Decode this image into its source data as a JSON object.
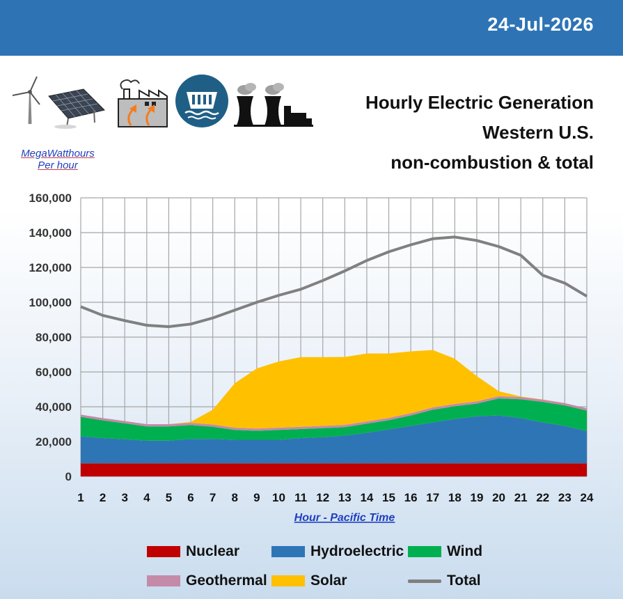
{
  "header": {
    "date": "24-Jul-2026"
  },
  "icons": [
    "wind-turbine-icon",
    "solar-panel-icon",
    "geothermal-plant-icon",
    "hydro-dam-icon",
    "nuclear-plant-icon"
  ],
  "units": {
    "line1": "MegaWatthours",
    "line2": "Per hour"
  },
  "title": {
    "line1": "Hourly Electric Generation",
    "line2": "Western U.S.",
    "line3": "non-combustion & total"
  },
  "colors": {
    "header_bg": "#2e74b5",
    "nuclear": "#c00000",
    "hydroelectric": "#2e75b6",
    "wind": "#00b050",
    "geothermal": "#c48aa8",
    "solar": "#ffc000",
    "total": "#808080",
    "axis_title": "#1f3fbf",
    "grid": "#a6a6a6"
  },
  "chart_data": {
    "type": "area",
    "xlabel": "Hour - Pacific Time",
    "ylabel": "MegaWatthours Per hour",
    "ylim": [
      0,
      160000
    ],
    "yticks": [
      0,
      20000,
      40000,
      60000,
      80000,
      100000,
      120000,
      140000,
      160000
    ],
    "ytick_labels": [
      "0",
      "20,000",
      "40,000",
      "60,000",
      "80,000",
      "100,000",
      "120,000",
      "140,000",
      "160,000"
    ],
    "x": [
      1,
      2,
      3,
      4,
      5,
      6,
      7,
      8,
      9,
      10,
      11,
      12,
      13,
      14,
      15,
      16,
      17,
      18,
      19,
      20,
      21,
      22,
      23,
      24
    ],
    "grid": true,
    "legend_placement": "bottom",
    "stacked_series": [
      {
        "name": "Nuclear",
        "values": [
          7500,
          7500,
          7500,
          7500,
          7500,
          7500,
          7500,
          7500,
          7500,
          7500,
          7500,
          7500,
          7500,
          7500,
          7500,
          7500,
          7500,
          7500,
          7500,
          7500,
          7500,
          7500,
          7500,
          7500
        ]
      },
      {
        "name": "Hydroelectric",
        "values": [
          15500,
          14500,
          13800,
          13000,
          13000,
          14000,
          14000,
          13500,
          13500,
          13500,
          14500,
          15000,
          16000,
          17500,
          19500,
          21500,
          23500,
          25500,
          27000,
          27500,
          26000,
          23500,
          21500,
          18500
        ]
      },
      {
        "name": "Wind",
        "values": [
          11200,
          10200,
          9200,
          8200,
          8200,
          8000,
          7000,
          5700,
          5200,
          5700,
          5200,
          5200,
          4800,
          5300,
          5300,
          6000,
          7300,
          7300,
          7300,
          9800,
          10800,
          11800,
          11800,
          11800
        ]
      },
      {
        "name": "Geothermal",
        "values": [
          1300,
          1300,
          1300,
          1300,
          1300,
          1300,
          1300,
          1300,
          1300,
          1300,
          1300,
          1300,
          1300,
          1300,
          1300,
          1300,
          1300,
          1300,
          1300,
          1300,
          1300,
          1300,
          1300,
          1300
        ]
      },
      {
        "name": "Solar",
        "values": [
          0,
          0,
          0,
          0,
          0,
          500,
          8500,
          25500,
          34500,
          38000,
          40000,
          39500,
          39000,
          39000,
          37000,
          35500,
          33000,
          26000,
          14500,
          2800,
          300,
          100,
          0,
          0
        ]
      }
    ],
    "line_series": [
      {
        "name": "Total",
        "values": [
          97500,
          92500,
          89500,
          86800,
          86000,
          87500,
          91000,
          95500,
          100000,
          104000,
          107500,
          112500,
          118000,
          124000,
          129000,
          133000,
          136500,
          137500,
          135500,
          132000,
          127000,
          115500,
          111000,
          103500
        ]
      }
    ]
  },
  "legend": [
    {
      "label": "Nuclear",
      "kind": "area",
      "color": "#c00000"
    },
    {
      "label": "Hydroelectric",
      "kind": "area",
      "color": "#2e75b6"
    },
    {
      "label": "Wind",
      "kind": "area",
      "color": "#00b050"
    },
    {
      "label": "Geothermal",
      "kind": "area",
      "color": "#c48aa8"
    },
    {
      "label": "Solar",
      "kind": "area",
      "color": "#ffc000"
    },
    {
      "label": "Total",
      "kind": "line",
      "color": "#808080"
    }
  ]
}
